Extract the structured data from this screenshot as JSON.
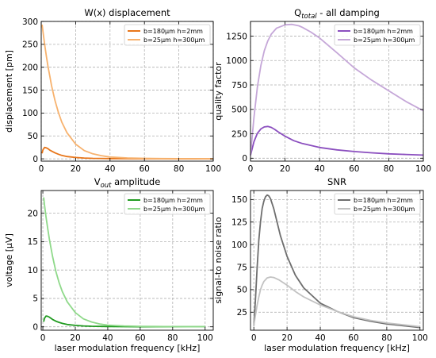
{
  "chart_data": [
    {
      "type": "line",
      "title_main": "W(x) displacement",
      "title_sub": "",
      "title_tail": "",
      "xlabel": "",
      "ylabel": "displacement [pm]",
      "xlim": [
        0,
        100
      ],
      "ylim": [
        -5,
        300
      ],
      "xticks": [
        0,
        20,
        40,
        60,
        80,
        100
      ],
      "yticks": [
        0,
        50,
        100,
        150,
        200,
        250,
        300
      ],
      "grid": true,
      "legend_position": "upper-right",
      "series": [
        {
          "name": "b=180µm h=2mm",
          "color": "#e8761a",
          "x": [
            0.5,
            1,
            2,
            3,
            4,
            5,
            6,
            8,
            10,
            12,
            15,
            20,
            25,
            30,
            40,
            50,
            60,
            70,
            80,
            90,
            100
          ],
          "y": [
            12,
            20,
            25,
            24,
            22,
            19,
            17,
            13,
            10,
            7.5,
            5,
            3,
            1.8,
            1.1,
            0.5,
            0.3,
            0.2,
            0.15,
            0.1,
            0.1,
            0.1
          ]
        },
        {
          "name": "b=25µm h=300µm",
          "color": "#f7b26e",
          "x": [
            0.5,
            1,
            2,
            3,
            4,
            5,
            6,
            8,
            10,
            12,
            15,
            20,
            25,
            30,
            35,
            40,
            50,
            60,
            70,
            80,
            90,
            100
          ],
          "y": [
            293,
            278,
            250,
            224,
            200,
            180,
            160,
            127,
            101,
            80,
            57,
            32,
            18,
            11,
            7,
            4,
            2,
            1,
            0.6,
            0.4,
            0.3,
            0.2
          ]
        }
      ]
    },
    {
      "type": "line",
      "title_main": "Q",
      "title_sub": "total",
      "title_tail": " - all damping",
      "xlabel": "",
      "ylabel": "quality factor",
      "xlim": [
        0,
        100
      ],
      "ylim": [
        -30,
        1400
      ],
      "xticks": [
        0,
        20,
        40,
        60,
        80,
        100
      ],
      "yticks": [
        0,
        250,
        500,
        750,
        1000,
        1250
      ],
      "grid": true,
      "legend_position": "upper-right",
      "series": [
        {
          "name": "b=180µm h=2mm",
          "color": "#8b4fbf",
          "x": [
            0,
            2,
            4,
            6,
            8,
            10,
            12,
            14,
            16,
            20,
            25,
            30,
            40,
            50,
            60,
            70,
            80,
            90,
            100
          ],
          "y": [
            30,
            170,
            255,
            300,
            320,
            325,
            315,
            295,
            270,
            225,
            180,
            150,
            110,
            85,
            68,
            55,
            45,
            38,
            32
          ]
        },
        {
          "name": "b=25µm h=300µm",
          "color": "#c5a7d8",
          "x": [
            0,
            2,
            4,
            6,
            8,
            10,
            12,
            15,
            20,
            24,
            28,
            30,
            35,
            40,
            50,
            60,
            70,
            80,
            90,
            100
          ],
          "y": [
            30,
            420,
            730,
            950,
            1100,
            1200,
            1270,
            1330,
            1365,
            1370,
            1355,
            1340,
            1290,
            1230,
            1080,
            925,
            800,
            690,
            580,
            485
          ]
        }
      ]
    },
    {
      "type": "line",
      "title_main": "V",
      "title_sub": "out",
      "title_tail": " amplitude",
      "xlabel": "laser modulation frequency [kHz]",
      "ylabel": "voltage [µV]",
      "xlim": [
        -1,
        105
      ],
      "ylim": [
        -0.6,
        24
      ],
      "xticks": [
        0,
        20,
        40,
        60,
        80,
        100
      ],
      "yticks": [
        0,
        5,
        10,
        15,
        20
      ],
      "grid": true,
      "legend_position": "upper-right",
      "series": [
        {
          "name": "b=180µm h=2mm",
          "color": "#219b21",
          "x": [
            0.5,
            1,
            2,
            3,
            4,
            5,
            6,
            8,
            10,
            12,
            15,
            20,
            25,
            30,
            40,
            50,
            60,
            70,
            80,
            90,
            100
          ],
          "y": [
            0.9,
            1.5,
            1.9,
            1.85,
            1.7,
            1.5,
            1.3,
            1.0,
            0.78,
            0.6,
            0.4,
            0.25,
            0.15,
            0.1,
            0.05,
            0.03,
            0.02,
            0.01,
            0.01,
            0.01,
            0.01
          ]
        },
        {
          "name": "b=25µm h=300µm",
          "color": "#8fd98a",
          "x": [
            0.5,
            1,
            2,
            3,
            4,
            5,
            6,
            8,
            10,
            12,
            15,
            20,
            25,
            30,
            35,
            40,
            50,
            60,
            70,
            80,
            90,
            100
          ],
          "y": [
            22.8,
            21.5,
            19.3,
            17.3,
            15.5,
            13.9,
            12.4,
            9.8,
            7.8,
            6.2,
            4.4,
            2.5,
            1.4,
            0.85,
            0.5,
            0.3,
            0.15,
            0.08,
            0.05,
            0.03,
            0.02,
            0.02
          ]
        }
      ]
    },
    {
      "type": "line",
      "title_main": "SNR",
      "title_sub": "",
      "title_tail": "",
      "xlabel": "laser modulation frequency [kHz]",
      "ylabel": "signal-to noise ratio",
      "xlim": [
        -2,
        102
      ],
      "ylim": [
        5,
        160
      ],
      "xticks": [
        0,
        20,
        40,
        60,
        80,
        100
      ],
      "yticks": [
        25,
        50,
        75,
        100,
        125,
        150
      ],
      "grid": true,
      "legend_position": "upper-right",
      "series": [
        {
          "name": "b=180µm h=2mm",
          "color": "#6e6e6e",
          "x": [
            0,
            1,
            2,
            3,
            4,
            5,
            6,
            7,
            8,
            9,
            10,
            12,
            14,
            16,
            20,
            25,
            30,
            40,
            50,
            60,
            70,
            80,
            90,
            100
          ],
          "y": [
            10,
            40,
            75,
            105,
            125,
            140,
            148,
            153,
            155,
            154,
            151,
            140,
            125,
            110,
            87,
            66,
            52,
            35,
            26,
            19,
            15,
            12,
            10,
            8
          ]
        },
        {
          "name": "b=25µm h=300µm",
          "color": "#c2c2c2",
          "x": [
            0,
            1,
            2,
            3,
            4,
            5,
            6,
            8,
            10,
            12,
            15,
            20,
            25,
            30,
            40,
            50,
            60,
            70,
            80,
            90,
            100
          ],
          "y": [
            10,
            22,
            33,
            42,
            50,
            55,
            59,
            63,
            64,
            63.5,
            61,
            55,
            48,
            42,
            33,
            26,
            20,
            16,
            13,
            11,
            9
          ]
        }
      ]
    }
  ]
}
